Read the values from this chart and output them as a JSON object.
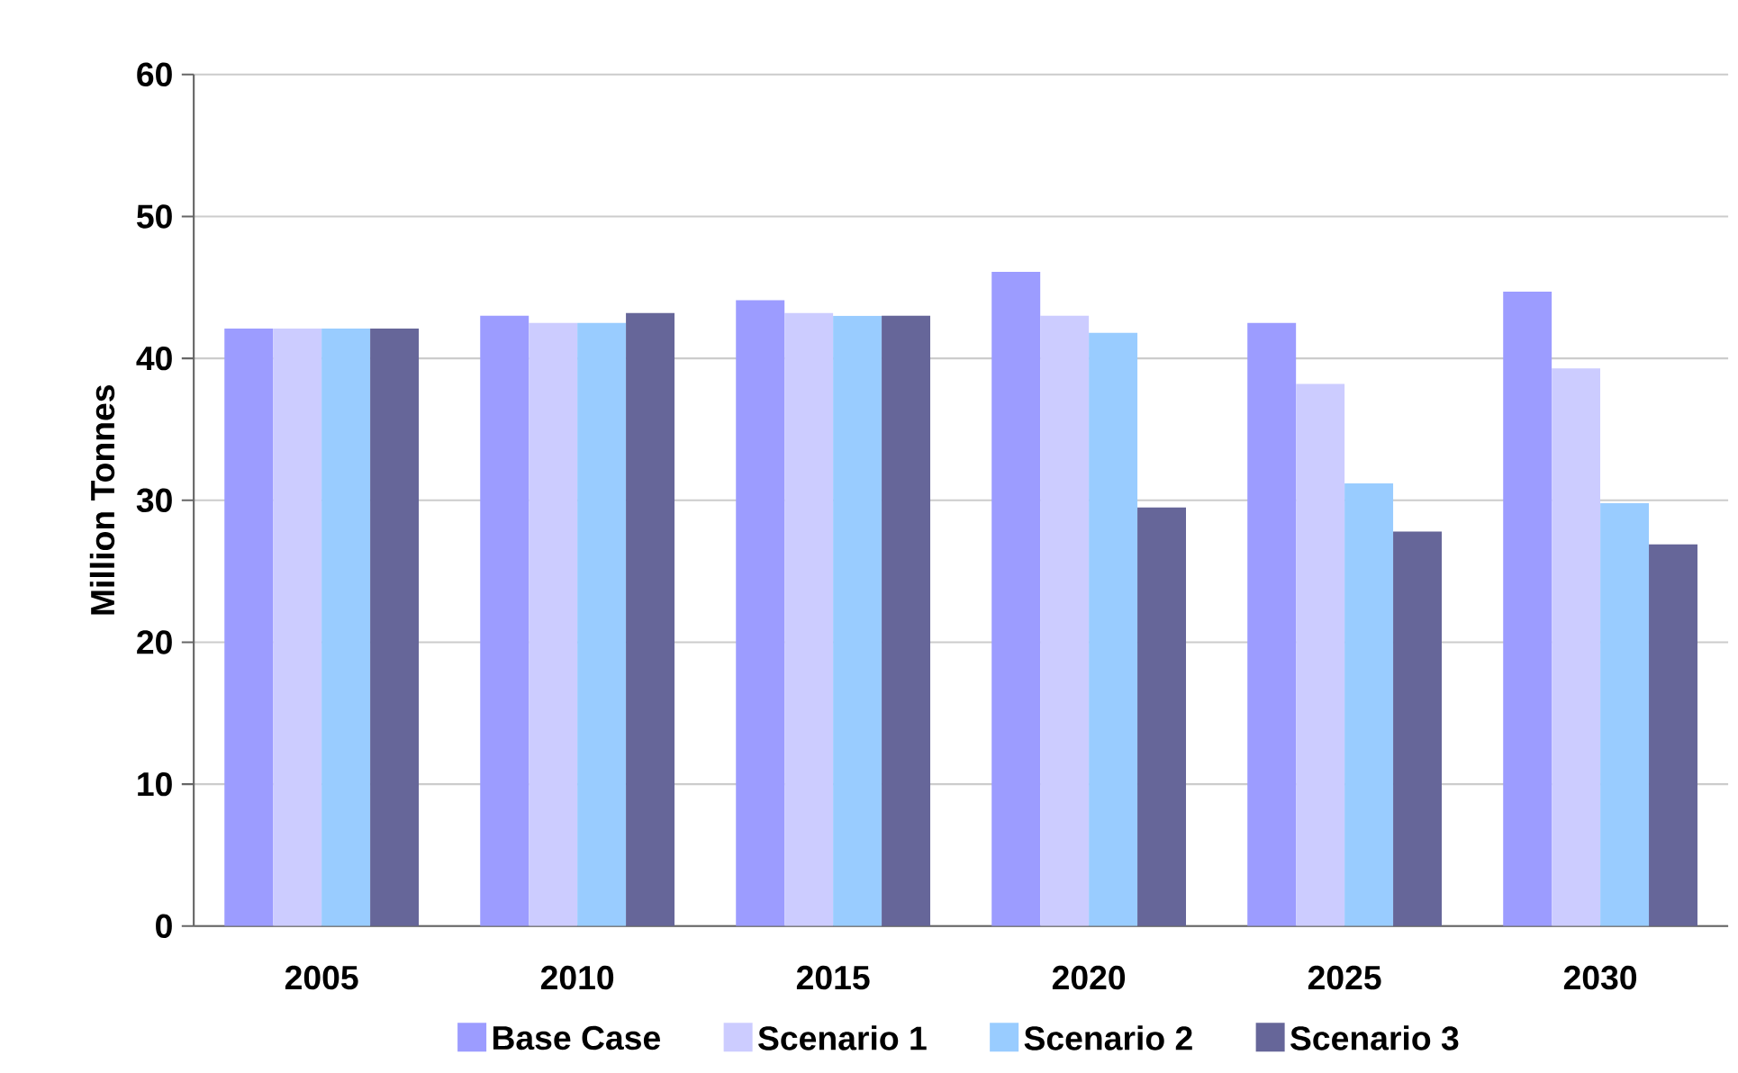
{
  "chart_data": {
    "type": "bar",
    "ylabel": "Million Tonnes",
    "categories": [
      "2005",
      "2010",
      "2015",
      "2020",
      "2025",
      "2030"
    ],
    "series": [
      {
        "name": "Base Case",
        "color": "#9c9cff",
        "values": [
          42.1,
          43.0,
          44.1,
          46.1,
          42.5,
          44.7
        ]
      },
      {
        "name": "Scenario 1",
        "color": "#ccccff",
        "values": [
          42.1,
          42.5,
          43.2,
          43.0,
          38.2,
          39.3
        ]
      },
      {
        "name": "Scenario 2",
        "color": "#99ccff",
        "values": [
          42.1,
          42.5,
          43.0,
          41.8,
          31.2,
          29.8
        ]
      },
      {
        "name": "Scenario 3",
        "color": "#666699",
        "values": [
          42.1,
          43.2,
          43.0,
          29.5,
          27.8,
          26.9
        ]
      }
    ],
    "ylim": [
      0,
      60
    ],
    "yticks": [
      0,
      10,
      20,
      30,
      40,
      50,
      60
    ],
    "grid": "y",
    "legend": "bottom"
  }
}
